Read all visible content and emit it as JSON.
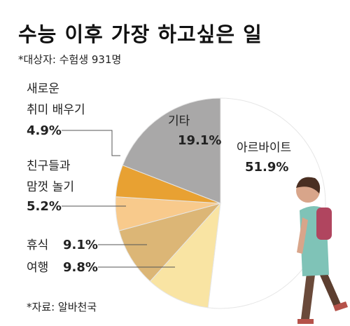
{
  "chart_data": {
    "type": "pie",
    "title": "수능 이후 가장 하고싶은 일",
    "subtitle": "*대상자: 수험생 931명",
    "source": "*자료: 알바천국",
    "categories": [
      "아르바이트",
      "여행",
      "휴식",
      "친구들과\n맘껏 놀기",
      "새로운\n취미 배우기",
      "기타"
    ],
    "values": [
      51.9,
      9.8,
      9.1,
      5.2,
      4.9,
      19.1
    ],
    "value_labels": [
      "51.9%",
      "9.8%",
      "9.1%",
      "5.2%",
      "4.9%",
      "19.1%"
    ],
    "colors": [
      "#ffffff",
      "#f9e4a3",
      "#dcb676",
      "#f8ca8c",
      "#e8a132",
      "#a9a8a8"
    ]
  }
}
